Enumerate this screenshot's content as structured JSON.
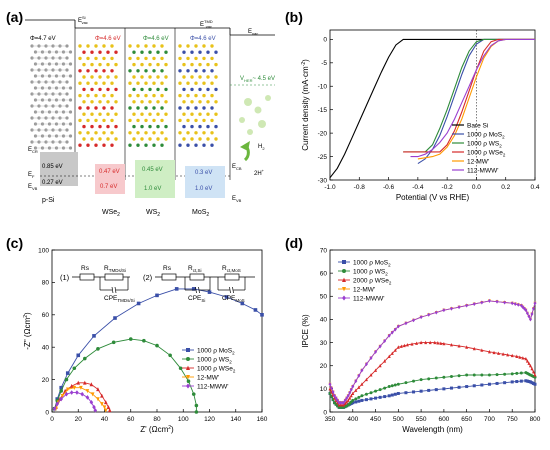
{
  "panels": [
    {
      "tag": "(a)"
    },
    {
      "tag": "(b)"
    },
    {
      "tag": "(c)"
    },
    {
      "tag": "(d)"
    }
  ],
  "colors": {
    "bare_si": "#000000",
    "mos2": "#3a4fa8",
    "ws2": "#2e8b3a",
    "wse2": "#d62a2a",
    "mw12": "#ff9a00",
    "mww112": "#9a3fd0",
    "pink_box": "#f7c9cc",
    "green_box": "#cfeec4",
    "blue_box": "#cfe3f5",
    "gray_box": "#c8c8c8"
  },
  "diagram": {
    "evac_left": "E",
    "evac_left_sup": "Si",
    "evac_left_sub": "vac",
    "evac_right": "E",
    "evac_right_sup": "TMD",
    "evac_right_sub": "vac",
    "evac_far": "E",
    "evac_far_sub": "vac",
    "phi_si": "Φ=4.7 eV",
    "phi_wse2": "Φ=4.6 eV",
    "phi_ws2": "Φ=4.6 eV",
    "phi_mos2": "Φ=4.6 eV",
    "v_her": "V",
    "v_her_sub": "HER",
    "v_her_val": "~ 4.5 eV",
    "ecb": "E",
    "ecb_sub": "CR",
    "ef": "E",
    "ef_sub": "F",
    "evb": "E",
    "evb_sub": "VB",
    "si_top": "0.85 eV",
    "si_bot": "0.27 eV",
    "wse2_top": "0.47 eV",
    "wse2_bot": "0.7 eV",
    "ws2_top": "0.45 eV",
    "ws2_bot": "1.0 eV",
    "mos2_top": "0.3 eV",
    "mos2_bot": "1.0 eV",
    "ecb_right": "E",
    "ecb_right_sub": "CB",
    "evb_right": "E",
    "evb_right_sub": "VB",
    "psi": "p-Si",
    "wse2_label": "WSe",
    "ws2_label": "WS",
    "mos2_label": "MoS",
    "sub2": "2",
    "h2": "H",
    "h2_sub": "2",
    "twoh": "2H",
    "twoh_sup": "+"
  },
  "chart_b": {
    "type": "line",
    "ylabel": "Current density (mA·cm",
    "ylabel_sup": "-2",
    "ylabel_end": ")",
    "xlabel": "Potential (V vs RHE)",
    "xlim": [
      -1.0,
      0.4
    ],
    "ylim": [
      -30,
      2
    ],
    "xticks": [
      "-1.0",
      "-0.8",
      "-0.6",
      "-0.4",
      "-0.2",
      "0.0",
      "0.2",
      "0.4"
    ],
    "yticks": [
      "0",
      "-5",
      "-10",
      "-15",
      "-20",
      "-25",
      "-30"
    ],
    "legend": [
      {
        "label": "Bare Si",
        "color": "#000000"
      },
      {
        "label": "1000 ρ MoS",
        "sub": "2",
        "color": "#3a4fa8"
      },
      {
        "label": "1000 ρ WS",
        "sub": "2",
        "color": "#2e8b3a"
      },
      {
        "label": "1000 ρ WSe",
        "sub": "2",
        "color": "#d62a2a"
      },
      {
        "label": "12-MW'",
        "sub": "",
        "color": "#ff9a00"
      },
      {
        "label": "112-MWW'",
        "sub": "",
        "color": "#9a3fd0"
      }
    ]
  },
  "chart_c": {
    "type": "scatter",
    "ylabel": "-Z\" (Ωcm",
    "ylabel_sup": "2",
    "ylabel_end": ")",
    "xlabel": "Z' (Ωcm",
    "xlabel_sup": "2",
    "xlabel_end": ")",
    "xlim": [
      0,
      160
    ],
    "ylim": [
      0,
      100
    ],
    "xticks": [
      "0",
      "20",
      "40",
      "60",
      "80",
      "100",
      "120",
      "140",
      "160"
    ],
    "yticks": [
      "0",
      "20",
      "40",
      "60",
      "80",
      "100"
    ],
    "circuit1": "(1)",
    "circuit2": "(2)",
    "rs": "Rs",
    "r_tmd_si": "R",
    "r_tmd_si_sub": "TMDs/Si",
    "cpe_tmd_si": "CPE",
    "cpe_tmd_si_sub": "TMDs/Si",
    "r_ct_si": "R",
    "r_ct_si_sub": "ct,Si",
    "r_ct_mos2": "R",
    "r_ct_mos2_sub": "ct,MoS",
    "cpe_si": "CPE",
    "cpe_si_sub": "Si",
    "cpe_mos2": "CPE",
    "cpe_mos2_sub": "MoS",
    "legend": [
      {
        "label": "1000 ρ MoS",
        "sub": "2",
        "color": "#3a4fa8",
        "marker": "square"
      },
      {
        "label": "1000 ρ WS",
        "sub": "2",
        "color": "#2e8b3a",
        "marker": "circle"
      },
      {
        "label": "1000 ρ WSe",
        "sub": "2",
        "color": "#d62a2a",
        "marker": "triangle"
      },
      {
        "label": "12-MW'",
        "sub": "",
        "color": "#ff9a00",
        "marker": "tri-down"
      },
      {
        "label": "112-MWW'",
        "sub": "",
        "color": "#9a3fd0",
        "marker": "diamond"
      }
    ]
  },
  "chart_d": {
    "type": "line",
    "ylabel": "IPCE (%)",
    "xlabel": "Wavelength (nm)",
    "xlim": [
      350,
      800
    ],
    "ylim": [
      0,
      70
    ],
    "xticks": [
      "350",
      "400",
      "450",
      "500",
      "550",
      "600",
      "650",
      "700",
      "750",
      "800"
    ],
    "yticks": [
      "0",
      "10",
      "20",
      "30",
      "40",
      "50",
      "60",
      "70"
    ],
    "legend": [
      {
        "label": "1000 ρ MoS",
        "sub": "2",
        "color": "#3a4fa8",
        "marker": "square"
      },
      {
        "label": "1000 ρ WS",
        "sub": "2",
        "color": "#2e8b3a",
        "marker": "circle"
      },
      {
        "label": "2000 ρ WSe",
        "sub": "2",
        "color": "#d62a2a",
        "marker": "triangle"
      },
      {
        "label": "12-MW'",
        "sub": "",
        "color": "#ff9a00",
        "marker": "tri-down"
      },
      {
        "label": "112-MWW'",
        "sub": "",
        "color": "#9a3fd0",
        "marker": "diamond"
      }
    ]
  },
  "chart_data": [
    {
      "type": "line",
      "xlabel": "Potential (V vs RHE)",
      "ylabel": "Current density (mA·cm-2)",
      "xlim": [
        -1.0,
        0.4
      ],
      "ylim": [
        -30,
        2
      ],
      "series": [
        {
          "name": "Bare Si",
          "x": [
            -1.0,
            -0.95,
            -0.9,
            -0.85,
            -0.8,
            -0.75,
            -0.7,
            -0.65,
            -0.6,
            -0.55,
            -0.5,
            -0.45,
            -0.4,
            -0.2,
            0.0,
            0.4
          ],
          "y": [
            -29.5,
            -27.5,
            -24.5,
            -21,
            -17.5,
            -14,
            -10.5,
            -7,
            -3.8,
            -1.2,
            0,
            0,
            0,
            0,
            0,
            0
          ]
        },
        {
          "name": "1000 ρ MoS2",
          "x": [
            -0.4,
            -0.35,
            -0.3,
            -0.25,
            -0.2,
            -0.15,
            -0.1,
            -0.05,
            0.0,
            0.05,
            0.1,
            0.4
          ],
          "y": [
            -26.5,
            -25.5,
            -23.5,
            -20.5,
            -16.5,
            -12,
            -7.5,
            -3.5,
            -1,
            0,
            0,
            0
          ]
        },
        {
          "name": "1000 ρ WS2",
          "x": [
            -0.5,
            -0.35,
            -0.3,
            -0.25,
            -0.2,
            -0.15,
            -0.1,
            -0.05,
            0.0,
            0.05,
            0.1,
            0.4
          ],
          "y": [
            -24,
            -24,
            -22.5,
            -19,
            -15,
            -10.5,
            -6,
            -2.5,
            -0.5,
            0,
            0,
            0
          ]
        },
        {
          "name": "1000 ρ WSe2",
          "x": [
            -0.5,
            -0.35,
            -0.25,
            -0.2,
            -0.15,
            -0.1,
            -0.05,
            0.0,
            0.05,
            0.1,
            0.15,
            0.4
          ],
          "y": [
            -24,
            -24,
            -24,
            -22.5,
            -19.5,
            -15.5,
            -11,
            -6.5,
            -2.5,
            -0.5,
            0,
            0
          ]
        },
        {
          "name": "12-MW'",
          "x": [
            -0.4,
            -0.3,
            -0.25,
            -0.2,
            -0.15,
            -0.1,
            -0.05,
            0.0,
            0.05,
            0.1,
            0.15,
            0.2,
            0.4
          ],
          "y": [
            -25.5,
            -25,
            -24.5,
            -23,
            -20.5,
            -17,
            -12.5,
            -8,
            -4,
            -1.5,
            -0.3,
            0,
            0
          ]
        },
        {
          "name": "112-MWW'",
          "x": [
            -0.45,
            -0.4,
            -0.35,
            -0.3,
            -0.25,
            -0.2,
            -0.15,
            -0.1,
            -0.05,
            0.0,
            0.05,
            0.1,
            0.15,
            0.2,
            0.4
          ],
          "y": [
            -25,
            -25,
            -24.5,
            -23.5,
            -22,
            -20,
            -17,
            -13.5,
            -10,
            -6.5,
            -3.5,
            -1.3,
            -0.3,
            0,
            0
          ]
        }
      ]
    },
    {
      "type": "scatter",
      "xlabel": "Z' (Ωcm2)",
      "ylabel": "-Z\" (Ωcm2)",
      "xlim": [
        0,
        160
      ],
      "ylim": [
        0,
        100
      ],
      "series": [
        {
          "name": "1000 ρ MoS2",
          "x": [
            2,
            4,
            7,
            12,
            20,
            32,
            48,
            66,
            80,
            95,
            108,
            120,
            133,
            145,
            155,
            160
          ],
          "y": [
            2,
            8,
            15,
            24,
            35,
            47,
            58,
            67,
            72,
            76,
            76,
            74,
            71,
            67,
            63,
            60
          ]
        },
        {
          "name": "1000 ρ WS2",
          "x": [
            2,
            4,
            7,
            11,
            17,
            25,
            35,
            47,
            60,
            70,
            80,
            90,
            98,
            104,
            108,
            110,
            110
          ],
          "y": [
            2,
            7,
            13,
            20,
            27,
            33,
            39,
            43,
            45,
            44,
            41,
            35,
            27,
            19,
            11,
            4,
            0
          ]
        },
        {
          "name": "1000 ρ WSe2",
          "x": [
            3,
            6,
            10,
            15,
            20,
            25,
            30,
            35,
            38,
            41,
            43,
            44
          ],
          "y": [
            3,
            8,
            13,
            16,
            18,
            18,
            17,
            14,
            10,
            6,
            3,
            1
          ]
        },
        {
          "name": "12-MW'",
          "x": [
            3,
            5,
            8,
            12,
            17,
            22,
            27,
            31,
            35,
            38,
            40,
            41
          ],
          "y": [
            2,
            6,
            10,
            14,
            15,
            15,
            13,
            11,
            8,
            5,
            3,
            1
          ]
        },
        {
          "name": "112-MWW'",
          "x": [
            2,
            4,
            7,
            11,
            15,
            19,
            23,
            27,
            30,
            32,
            33
          ],
          "y": [
            2,
            5,
            8,
            11,
            12,
            12,
            11,
            9,
            6,
            3,
            1
          ]
        }
      ]
    },
    {
      "type": "line",
      "xlabel": "Wavelength (nm)",
      "ylabel": "IPCE (%)",
      "xlim": [
        350,
        800
      ],
      "ylim": [
        0,
        70
      ],
      "series": [
        {
          "name": "1000 ρ MoS2",
          "x": [
            350,
            360,
            370,
            380,
            390,
            400,
            420,
            450,
            480,
            500,
            550,
            600,
            650,
            700,
            750,
            780,
            790,
            800
          ],
          "y": [
            8,
            4,
            2,
            2,
            3,
            4,
            5,
            6,
            7,
            8,
            9,
            10,
            11,
            12,
            13,
            13.5,
            13,
            12
          ]
        },
        {
          "name": "1000 ρ WS2",
          "x": [
            350,
            360,
            370,
            380,
            390,
            400,
            420,
            450,
            480,
            500,
            550,
            600,
            650,
            700,
            750,
            780,
            790,
            800
          ],
          "y": [
            8,
            4,
            2,
            2,
            3,
            5,
            7,
            9,
            11,
            12,
            14,
            15,
            16,
            16,
            16.5,
            17,
            16,
            15
          ]
        },
        {
          "name": "2000 ρ WSe2",
          "x": [
            350,
            360,
            370,
            380,
            390,
            400,
            420,
            450,
            480,
            500,
            520,
            550,
            580,
            600,
            650,
            700,
            730,
            760,
            780,
            790,
            800
          ],
          "y": [
            10,
            6,
            3,
            3,
            5,
            8,
            12,
            18,
            24,
            28,
            29,
            30,
            30,
            29.5,
            28,
            26,
            25,
            24,
            23,
            20,
            16
          ]
        },
        {
          "name": "12-MW'",
          "x": [
            350,
            360,
            370,
            380,
            390,
            400,
            420,
            450,
            480,
            500,
            550,
            600,
            650,
            700,
            750,
            770,
            780,
            790,
            800
          ],
          "y": [
            12,
            7,
            4,
            4,
            7,
            11,
            18,
            26,
            33,
            37,
            41,
            44,
            46,
            48,
            47,
            46,
            44,
            40,
            47
          ]
        },
        {
          "name": "112-MWW'",
          "x": [
            350,
            360,
            370,
            380,
            390,
            400,
            420,
            450,
            480,
            500,
            550,
            600,
            650,
            700,
            750,
            770,
            780,
            790,
            800
          ],
          "y": [
            12,
            7,
            4,
            4,
            7,
            11,
            18,
            26,
            33,
            37,
            41,
            44,
            46,
            48,
            47,
            46,
            44,
            40,
            47
          ]
        }
      ]
    }
  ]
}
